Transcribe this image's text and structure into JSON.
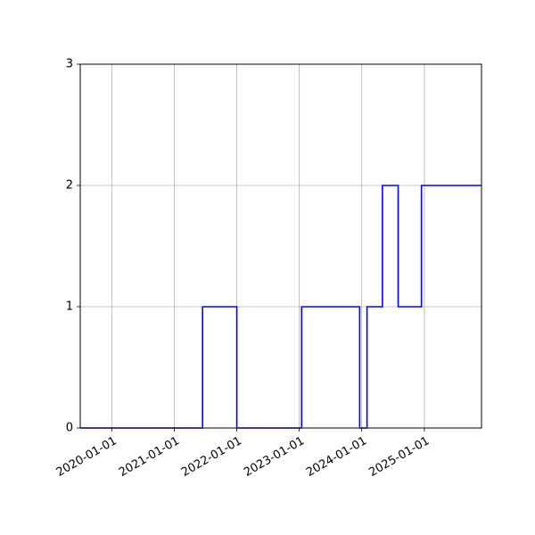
{
  "chart_data": {
    "type": "line",
    "step": "post",
    "title": "",
    "xlabel": "",
    "ylabel": "",
    "grid": true,
    "series": [
      {
        "color": "#0000ff",
        "x": [
          "2019-07-01",
          "2021-03-01",
          "2021-06-15",
          "2022-01-01",
          "2023-01-01",
          "2023-01-15",
          "2023-12-20",
          "2024-02-01",
          "2024-05-01",
          "2024-08-01",
          "2024-12-15",
          "2025-12-01"
        ],
        "y": [
          0,
          0,
          1,
          0,
          0,
          1,
          0,
          1,
          2,
          1,
          2,
          2
        ]
      }
    ],
    "xlim": [
      "2019-07-01",
      "2025-12-01"
    ],
    "ylim": [
      0,
      3
    ],
    "x_ticks": [
      "2020-01-01",
      "2021-01-01",
      "2022-01-01",
      "2023-01-01",
      "2024-01-01",
      "2025-01-01"
    ],
    "y_ticks": [
      "0",
      "1",
      "2",
      "3"
    ]
  }
}
